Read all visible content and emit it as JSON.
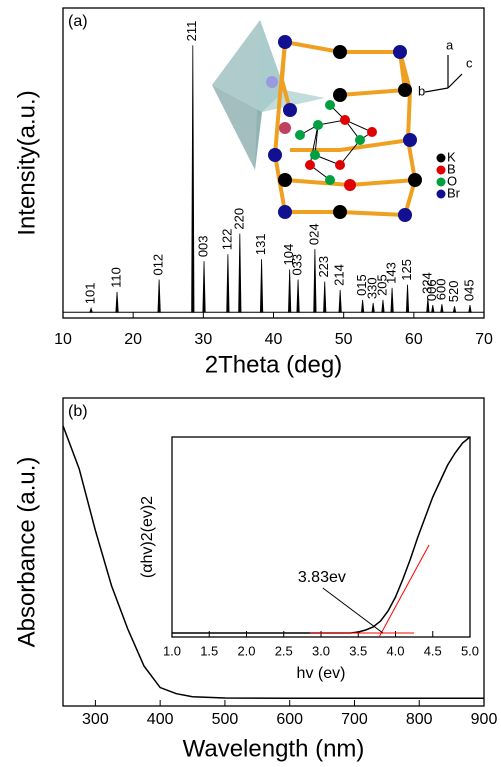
{
  "chart_data": [
    {
      "type": "stem",
      "panel_label": "(a)",
      "xlabel": "2Theta  (deg)",
      "ylabel": "Intensity(a.u.)",
      "color": "#000000",
      "x": [
        14.0,
        17.7,
        23.7,
        28.5,
        30.1,
        33.5,
        35.2,
        38.3,
        42.3,
        43.5,
        45.9,
        47.3,
        49.5,
        52.7,
        54.2,
        55.6,
        56.9,
        59.1,
        62.0,
        62.7,
        64.0,
        65.8,
        68.0
      ],
      "values": [
        1.4,
        7.1,
        11.4,
        93,
        17.8,
        20.2,
        27.4,
        18.5,
        14.9,
        11.4,
        22,
        10.7,
        7.8,
        4.3,
        3.2,
        4.3,
        8.5,
        9.6,
        5,
        2.5,
        2.8,
        2.1,
        2.5
      ],
      "peak_labels": [
        "101",
        "110",
        "012",
        "211",
        "003",
        "122",
        "220",
        "131",
        "104",
        "033",
        "024",
        "223",
        "214",
        "015",
        "330",
        "205",
        "143",
        "125",
        "324",
        "006",
        "600",
        "520",
        "045"
      ],
      "xlim": [
        10,
        70
      ],
      "xticks": [
        10,
        20,
        30,
        40,
        50,
        60,
        70
      ],
      "ylim": [
        -2,
        106
      ],
      "structure_inset": {
        "axis_labels": [
          "a",
          "b",
          "c"
        ],
        "legend": [
          {
            "name": "K",
            "color": "#000000"
          },
          {
            "name": "B",
            "color": "#e00000"
          },
          {
            "name": "O",
            "color": "#00a040"
          },
          {
            "name": "Br",
            "color": "#101090"
          }
        ]
      }
    },
    {
      "type": "line",
      "panel_label": "(b)",
      "xlabel": "Wavelength (nm)",
      "ylabel": "Absorbance (a.u.)",
      "color": "#000000",
      "x": [
        250,
        275,
        300,
        325,
        350,
        375,
        400,
        425,
        450,
        500,
        600,
        700,
        800,
        900
      ],
      "values": [
        0.91,
        0.77,
        0.57,
        0.39,
        0.25,
        0.13,
        0.06,
        0.04,
        0.03,
        0.026,
        0.025,
        0.025,
        0.025,
        0.025
      ],
      "xlim": [
        250,
        900
      ],
      "xticks": [
        300,
        400,
        500,
        600,
        700,
        800,
        900
      ],
      "ylim": [
        0,
        1
      ]
    },
    {
      "type": "line",
      "xlabel": "hv (ev)",
      "ylabel": "(αhv)2(ev)2",
      "color": "#000000",
      "x": [
        1.0,
        1.5,
        2.0,
        2.5,
        3.0,
        3.4,
        3.5,
        3.6,
        3.7,
        3.8,
        3.9,
        4.0,
        4.1,
        4.2,
        4.3,
        4.4,
        4.5,
        4.6,
        4.7,
        4.8,
        4.9,
        5.0
      ],
      "values": [
        0.02,
        0.02,
        0.02,
        0.02,
        0.02,
        0.02,
        0.025,
        0.035,
        0.05,
        0.08,
        0.13,
        0.2,
        0.29,
        0.39,
        0.5,
        0.6,
        0.7,
        0.78,
        0.86,
        0.92,
        0.97,
        1.0
      ],
      "xlim": [
        1,
        5
      ],
      "ylim": [
        0,
        1
      ],
      "xticks": [
        {
          "value": 1,
          "label": "1.0"
        },
        {
          "value": 1.5,
          "label": "1.5"
        },
        {
          "value": 2,
          "label": "2.0"
        },
        {
          "value": 2.5,
          "label": "2.5"
        },
        {
          "value": 3,
          "label": "3.0"
        },
        {
          "value": 3.5,
          "label": "3.5"
        },
        {
          "value": 4,
          "label": "4.0"
        },
        {
          "value": 4.5,
          "label": "4.5"
        },
        {
          "value": 5,
          "label": "5.0"
        }
      ],
      "fit_lines": [
        {
          "color": "#ff0000",
          "x": [
            2.85,
            4.25
          ],
          "values": [
            0.02,
            0.02
          ]
        },
        {
          "color": "#ff0000",
          "x": [
            3.78,
            4.45
          ],
          "values": [
            0,
            0.46
          ]
        }
      ],
      "annotation": {
        "text": "3.83ev",
        "x": 3.83,
        "y": 0.02
      }
    }
  ]
}
